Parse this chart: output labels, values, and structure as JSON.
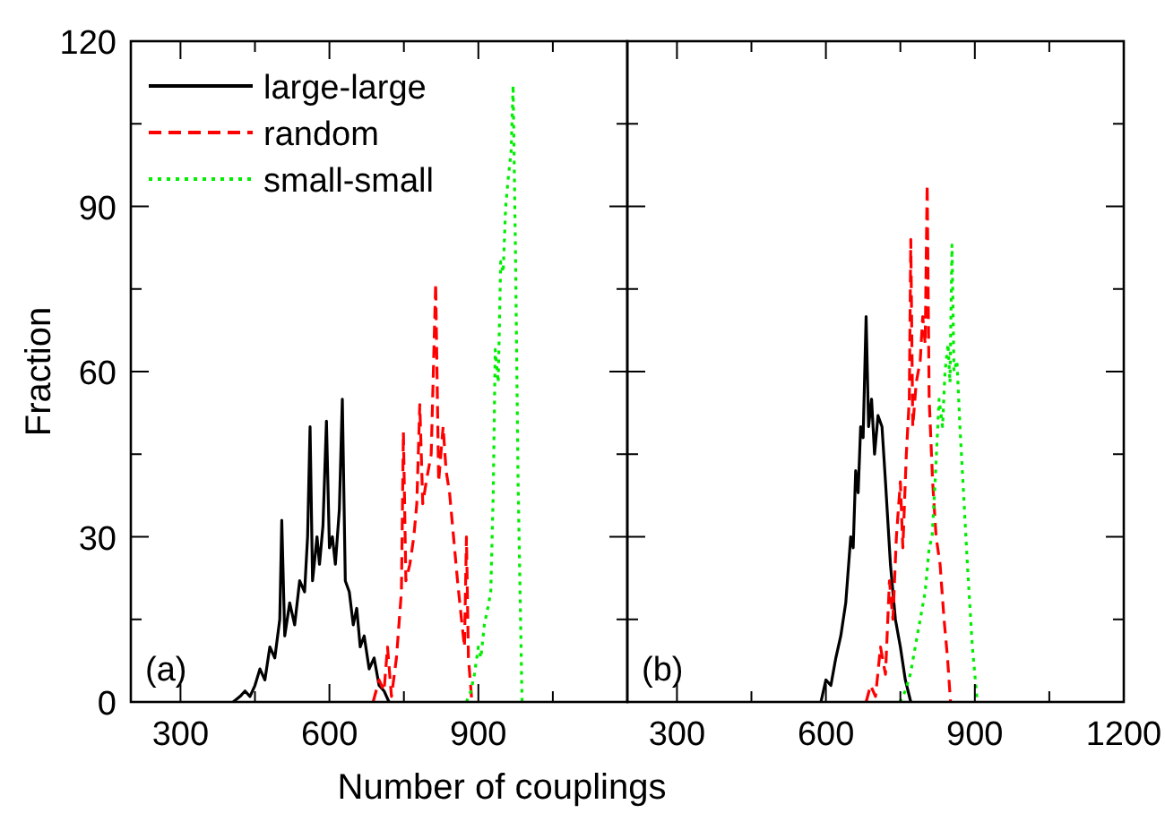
{
  "chart_data": [
    {
      "type": "line",
      "xlabel": "Number of couplings",
      "ylabel": "Fraction",
      "annotations": [
        "(a)"
      ],
      "xlim": [
        200,
        1200
      ],
      "ylim": [
        0,
        120
      ],
      "xticks": [
        300,
        {
          "value": 450,
          "label": null
        },
        600,
        {
          "value": 750,
          "label": null
        },
        900,
        {
          "value": 1050,
          "label": null
        },
        {
          "value": 1200,
          "label": null
        }
      ],
      "yticks": [
        0,
        {
          "value": 15,
          "label": null
        },
        30,
        {
          "value": 45,
          "label": null
        },
        60,
        {
          "value": 75,
          "label": null
        },
        90,
        {
          "value": 105,
          "label": null
        },
        120
      ],
      "grid": false,
      "legend": "top left",
      "series": [
        {
          "name": "large-large",
          "color": "#000000",
          "line_style": "solid",
          "x": [
            406,
            420,
            430,
            440,
            450,
            460,
            470,
            480,
            490,
            500,
            504,
            510,
            520,
            530,
            540,
            550,
            556,
            561,
            566,
            575,
            580,
            587,
            594,
            600,
            606,
            612,
            620,
            626,
            632,
            640,
            648,
            655,
            662,
            670,
            680,
            690,
            700,
            710,
            720
          ],
          "values": [
            0,
            1,
            2,
            1,
            3,
            6,
            4,
            10,
            8,
            15,
            33,
            12,
            18,
            14,
            22,
            20,
            30,
            50,
            22,
            30,
            25,
            32,
            51,
            28,
            30,
            25,
            35,
            55,
            22,
            20,
            14,
            17,
            10,
            12,
            6,
            8,
            3,
            2,
            0
          ]
        },
        {
          "name": "random",
          "color": "#ff0000",
          "line_style": "dashed",
          "x": [
            688,
            700,
            710,
            717,
            725,
            735,
            745,
            749,
            754,
            762,
            770,
            776,
            782,
            788,
            795,
            805,
            814,
            820,
            829,
            835,
            842,
            850,
            858,
            866,
            872,
            876,
            880,
            887
          ],
          "values": [
            0,
            4,
            2,
            10,
            1,
            8,
            20,
            49,
            22,
            25,
            30,
            36,
            54,
            36,
            40,
            45,
            76,
            40,
            50,
            42,
            38,
            30,
            22,
            15,
            10,
            30,
            8,
            0
          ]
        },
        {
          "name": "small-small",
          "color": "#00ee00",
          "line_style": "dotted",
          "x": [
            876,
            885,
            892,
            900,
            905,
            912,
            919,
            925,
            930,
            934,
            940,
            945,
            950,
            955,
            960,
            966,
            970,
            975,
            980,
            988
          ],
          "values": [
            0,
            2,
            5,
            10,
            8,
            14,
            17,
            20,
            38,
            64,
            58,
            80,
            78,
            90,
            95,
            100,
            112,
            80,
            40,
            0
          ]
        }
      ]
    },
    {
      "type": "line",
      "annotations": [
        "(b)"
      ],
      "xlim": [
        200,
        1200
      ],
      "ylim": [
        0,
        120
      ],
      "tick_labels": "x",
      "xticks": [
        300,
        {
          "value": 450,
          "label": null
        },
        600,
        {
          "value": 750,
          "label": null
        },
        900,
        {
          "value": 1050,
          "label": null
        },
        1200
      ],
      "yticks": [
        0,
        {
          "value": 15,
          "label": null
        },
        30,
        {
          "value": 45,
          "label": null
        },
        60,
        {
          "value": 75,
          "label": null
        },
        90,
        {
          "value": 105,
          "label": null
        },
        120
      ],
      "grid": false,
      "series": [
        {
          "color": "#000000",
          "line_style": "solid",
          "x": [
            590,
            600,
            610,
            620,
            630,
            640,
            650,
            655,
            660,
            665,
            670,
            675,
            681,
            686,
            692,
            698,
            705,
            713,
            720,
            730,
            740,
            750,
            760,
            771
          ],
          "values": [
            0,
            4,
            3,
            8,
            12,
            18,
            30,
            28,
            42,
            38,
            50,
            48,
            70,
            50,
            55,
            45,
            52,
            50,
            40,
            25,
            15,
            10,
            4,
            0
          ]
        },
        {
          "color": "#ff0000",
          "line_style": "dashed",
          "x": [
            681,
            690,
            700,
            710,
            720,
            728,
            735,
            742,
            750,
            755,
            762,
            768,
            771,
            775,
            782,
            790,
            795,
            800,
            804,
            808,
            815,
            822,
            830,
            838,
            845,
            851
          ],
          "values": [
            0,
            3,
            1,
            10,
            5,
            22,
            15,
            30,
            40,
            28,
            45,
            55,
            84,
            50,
            58,
            62,
            70,
            65,
            94,
            55,
            40,
            30,
            25,
            15,
            8,
            0
          ]
        },
        {
          "color": "#00ee00",
          "line_style": "dotted",
          "x": [
            749,
            760,
            770,
            780,
            790,
            800,
            808,
            814,
            820,
            828,
            835,
            840,
            846,
            850,
            854,
            858,
            864,
            870,
            876,
            885,
            895,
            905
          ],
          "values": [
            0,
            2,
            5,
            10,
            15,
            20,
            28,
            30,
            40,
            55,
            50,
            60,
            65,
            58,
            83,
            60,
            62,
            50,
            40,
            25,
            10,
            0
          ]
        }
      ]
    }
  ]
}
